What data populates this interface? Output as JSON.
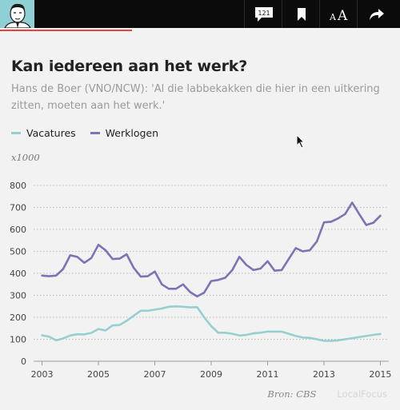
{
  "toolbar": {
    "comment_count": "121",
    "avatar_icon": "author-portrait",
    "icons": [
      "comments-icon",
      "bookmark-icon",
      "text-size-icon",
      "share-icon"
    ],
    "text_size_label": "AA",
    "accent_color": "#e8433a"
  },
  "article": {
    "reading_progress_percent": 33
  },
  "chart_data": {
    "type": "line",
    "title": "Kan iedereen aan het werk?",
    "subtitle": "Hans de Boer (VNO/NCW): 'Al die labbekakken die hier in een uitkering zitten, moeten aan het werk.'",
    "unit_label": "x1000",
    "xlabel": "",
    "ylabel": "",
    "xlim": [
      2002.7,
      2015.3
    ],
    "ylim": [
      0,
      800
    ],
    "yticks": [
      0,
      100,
      200,
      300,
      400,
      500,
      600,
      700,
      800
    ],
    "xticks": [
      2003,
      2005,
      2007,
      2009,
      2011,
      2013,
      2015
    ],
    "grid": "horizontal-dotted",
    "legend_position": "top-left",
    "source": "Bron: CBS",
    "credit": "LocalFocus",
    "series": [
      {
        "name": "Vacatures",
        "color": "#96cfcf",
        "x": [
          2003.0,
          2003.25,
          2003.5,
          2003.75,
          2004.0,
          2004.25,
          2004.5,
          2004.75,
          2005.0,
          2005.25,
          2005.5,
          2005.75,
          2006.0,
          2006.25,
          2006.5,
          2006.75,
          2007.0,
          2007.25,
          2007.5,
          2007.75,
          2008.0,
          2008.25,
          2008.5,
          2008.75,
          2009.0,
          2009.25,
          2009.5,
          2009.75,
          2010.0,
          2010.25,
          2010.5,
          2010.75,
          2011.0,
          2011.25,
          2011.5,
          2011.75,
          2012.0,
          2012.25,
          2012.5,
          2012.75,
          2013.0,
          2013.25,
          2013.5,
          2013.75,
          2014.0,
          2014.25,
          2014.5,
          2014.75,
          2015.0
        ],
        "values": [
          118,
          112,
          95,
          104,
          117,
          123,
          122,
          129,
          147,
          140,
          163,
          165,
          184,
          207,
          230,
          230,
          235,
          240,
          248,
          250,
          248,
          245,
          246,
          200,
          160,
          130,
          130,
          125,
          117,
          120,
          127,
          130,
          135,
          135,
          135,
          125,
          115,
          108,
          106,
          100,
          93,
          93,
          95,
          100,
          105,
          110,
          115,
          120,
          124
        ]
      },
      {
        "name": "Werklogen",
        "color": "#7e72b4",
        "x": [
          2003.0,
          2003.25,
          2003.5,
          2003.75,
          2004.0,
          2004.25,
          2004.5,
          2004.75,
          2005.0,
          2005.25,
          2005.5,
          2005.75,
          2006.0,
          2006.25,
          2006.5,
          2006.75,
          2007.0,
          2007.25,
          2007.5,
          2007.75,
          2008.0,
          2008.25,
          2008.5,
          2008.75,
          2009.0,
          2009.25,
          2009.5,
          2009.75,
          2010.0,
          2010.25,
          2010.5,
          2010.75,
          2011.0,
          2011.25,
          2011.5,
          2011.75,
          2012.0,
          2012.25,
          2012.5,
          2012.75,
          2013.0,
          2013.25,
          2013.5,
          2013.75,
          2014.0,
          2014.25,
          2014.5,
          2014.75,
          2015.0
        ],
        "values": [
          390,
          387,
          390,
          420,
          482,
          475,
          448,
          470,
          530,
          505,
          465,
          467,
          487,
          425,
          385,
          387,
          408,
          350,
          330,
          330,
          350,
          315,
          295,
          312,
          365,
          370,
          380,
          415,
          475,
          438,
          415,
          422,
          455,
          412,
          415,
          465,
          515,
          500,
          505,
          545,
          632,
          635,
          650,
          670,
          722,
          670,
          620,
          630,
          662
        ]
      }
    ]
  }
}
